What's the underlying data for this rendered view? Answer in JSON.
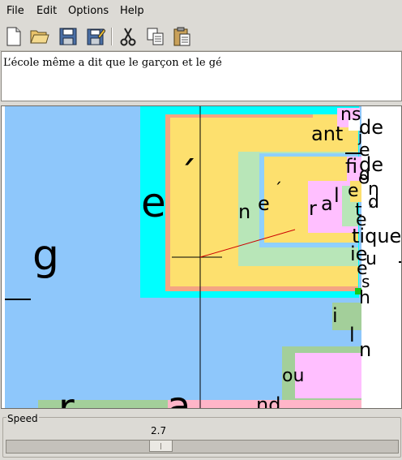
{
  "menu": {
    "file": "File",
    "edit": "Edit",
    "options": "Options",
    "help": "Help"
  },
  "toolbar": {
    "icons": [
      "new-document-icon",
      "open-folder-icon",
      "save-icon",
      "save-as-icon",
      "cut-icon",
      "copy-icon",
      "paste-icon"
    ]
  },
  "text_pane": {
    "content": "L’école même a dit que le garçon et le gé"
  },
  "canvas": {
    "glyphs": {
      "g_big": "g",
      "e_big": "e",
      "acute_big": "´",
      "n1": "n",
      "e_mid": "e",
      "acute_mid": "´",
      "r1": "r",
      "a1": "a",
      "l1": "l",
      "e2": "e",
      "ant": "ant",
      "ns": "ns",
      "de1": "de",
      "j": "j",
      "e3": "e",
      "de2": "de",
      "fi": "fi",
      "g2": "g",
      "e4": "e",
      "n2": "n",
      "d": "d",
      "t": "t",
      "acute_s": "´",
      "e5": "e",
      "tique": "tique",
      "ie": "ie",
      "u": "u",
      "e6": "e",
      "s": "s",
      "h": "h",
      "i": "i",
      "l2": "l",
      "n3": "n",
      "ou": "ou",
      "r_big": "r",
      "a_big": "a",
      "nd": "nd"
    }
  },
  "speed": {
    "label": "Speed",
    "value": "2.7",
    "fraction": 0.39
  },
  "colors": {
    "blue": "#8ec7fb",
    "cyan": "#00ffff",
    "salmon": "#f4a582",
    "yellow": "#fde06e",
    "green": "#b8e6b8",
    "darkgreen": "#a3cf9a",
    "pink": "#ffbfff",
    "lightblue": "#8fd0ff"
  }
}
